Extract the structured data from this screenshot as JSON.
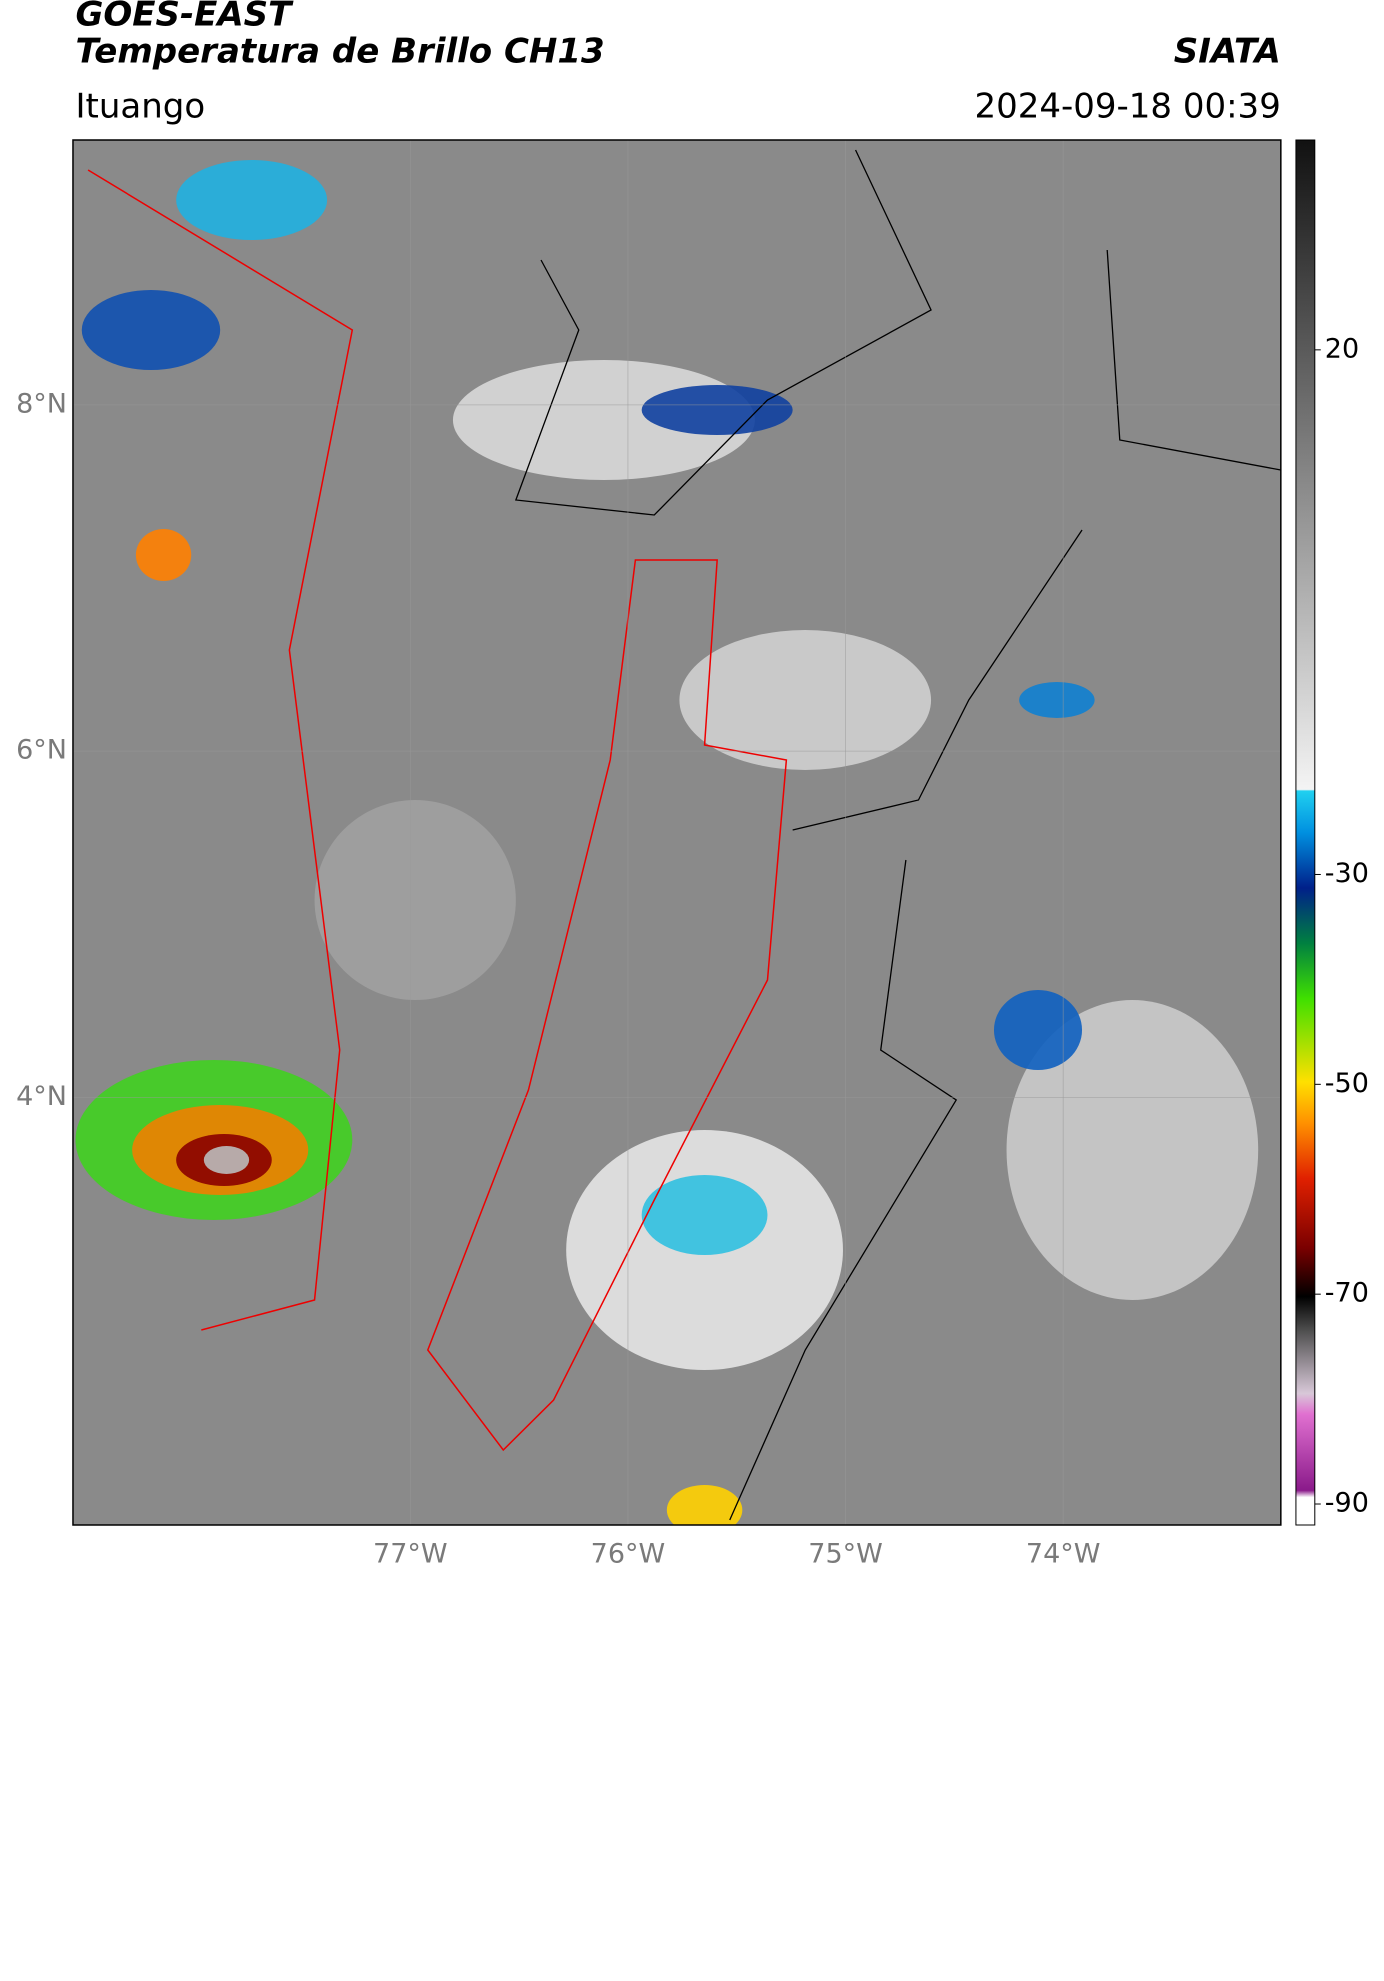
{
  "header": {
    "title_line1": "GOES-EAST",
    "title_line2": "Temperatura de Brillo CH13",
    "source": "SIATA",
    "location": "Ituango",
    "datetime": "2024-09-18 00:39"
  },
  "map": {
    "lonlim": [
      -78.55,
      -73.0
    ],
    "latlim": [
      1.53,
      9.53
    ],
    "lonticks": [
      {
        "value": -77,
        "label": "77°W"
      },
      {
        "value": -76,
        "label": "76°W"
      },
      {
        "value": -75,
        "label": "75°W"
      },
      {
        "value": -74,
        "label": "74°W"
      }
    ],
    "latticks": [
      {
        "value": 8,
        "label": "8°N"
      },
      {
        "value": 6,
        "label": "6°N"
      },
      {
        "value": 4,
        "label": "4°N"
      }
    ]
  },
  "colorbar": {
    "vlim": [
      -92,
      40
    ],
    "ticks": [
      20,
      -30,
      -50,
      -70,
      -90
    ]
  }
}
